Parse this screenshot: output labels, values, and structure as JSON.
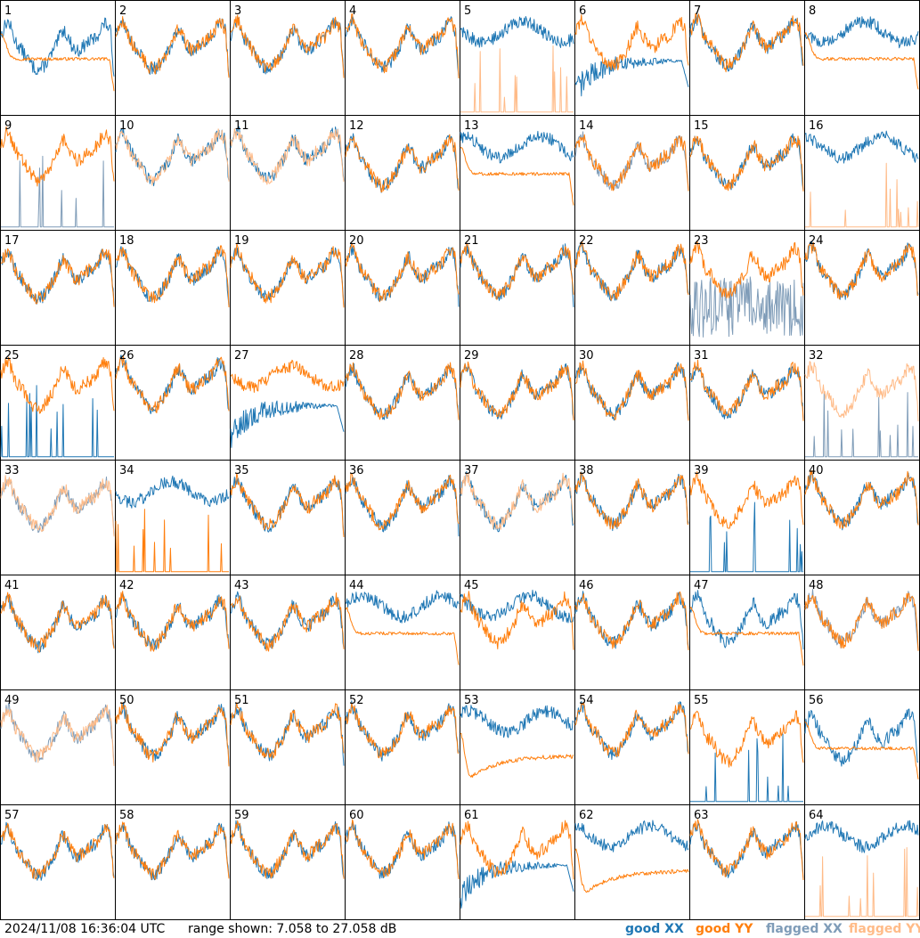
{
  "footer": {
    "timestamp": "2024/11/08 16:36:04 UTC",
    "range_text": "range shown: 7.058 to 27.058 dB"
  },
  "legend": {
    "good_xx": "good XX",
    "good_yy": "good YY",
    "flagged_xx": "flagged XX",
    "flagged_yy": "flagged YY"
  },
  "colors": {
    "good_xx": "#1f77b4",
    "good_yy": "#ff7f0e",
    "flagged_xx": "#7f9cb8",
    "flagged_yy": "#ffbb88"
  },
  "chart_data": {
    "type": "line",
    "layout": "8x8 small multiples",
    "ylim": [
      7.058,
      27.058
    ],
    "y_unit": "dB",
    "panel_labels": [
      "1",
      "2",
      "3",
      "4",
      "5",
      "6",
      "7",
      "8",
      "9",
      "10",
      "11",
      "12",
      "13",
      "14",
      "15",
      "16",
      "17",
      "18",
      "19",
      "20",
      "21",
      "22",
      "23",
      "24",
      "25",
      "26",
      "27",
      "28",
      "29",
      "30",
      "31",
      "32",
      "33",
      "34",
      "35",
      "36",
      "37",
      "38",
      "39",
      "40",
      "41",
      "42",
      "43",
      "44",
      "45",
      "46",
      "47",
      "48",
      "49",
      "50",
      "51",
      "52",
      "53",
      "54",
      "55",
      "56",
      "57",
      "58",
      "59",
      "60",
      "61",
      "62",
      "63",
      "64"
    ],
    "series_styles": {
      "XX": {
        "1": "good",
        "2": "good",
        "3": "good",
        "4": "good",
        "5": "good",
        "6": "good",
        "7": "good",
        "8": "good",
        "9": "flagged",
        "10": "good",
        "11": "good",
        "12": "good",
        "13": "good",
        "14": "flagged",
        "15": "good",
        "16": "good",
        "17": "good",
        "18": "good",
        "19": "good",
        "20": "good",
        "21": "good",
        "22": "good",
        "23": "flagged",
        "24": "good",
        "25": "good",
        "26": "good",
        "27": "good",
        "28": "good",
        "29": "good",
        "30": "good",
        "31": "good",
        "32": "flagged",
        "33": "flagged",
        "34": "good",
        "35": "good",
        "36": "good",
        "37": "good",
        "38": "good",
        "39": "good",
        "40": "good",
        "41": "good",
        "42": "good",
        "43": "good",
        "44": "good",
        "45": "good",
        "46": "good",
        "47": "good",
        "48": "flagged",
        "49": "flagged",
        "50": "good",
        "51": "good",
        "52": "good",
        "53": "good",
        "54": "good",
        "55": "good",
        "56": "good",
        "57": "good",
        "58": "good",
        "59": "good",
        "60": "good",
        "61": "good",
        "62": "good",
        "63": "good",
        "64": "good"
      },
      "YY": {
        "1": "good",
        "2": "good",
        "3": "good",
        "4": "good",
        "5": "flagged",
        "6": "good",
        "7": "good",
        "8": "good",
        "9": "good",
        "10": "flagged",
        "11": "flagged",
        "12": "good",
        "13": "good",
        "14": "good",
        "15": "good",
        "16": "flagged",
        "17": "good",
        "18": "good",
        "19": "good",
        "20": "good",
        "21": "good",
        "22": "good",
        "23": "good",
        "24": "good",
        "25": "good",
        "26": "good",
        "27": "good",
        "28": "good",
        "29": "good",
        "30": "good",
        "31": "good",
        "32": "flagged",
        "33": "flagged",
        "34": "good",
        "35": "good",
        "36": "good",
        "37": "flagged",
        "38": "good",
        "39": "good",
        "40": "good",
        "41": "good",
        "42": "good",
        "43": "good",
        "44": "good",
        "45": "good",
        "46": "good",
        "47": "good",
        "48": "good",
        "49": "flagged",
        "50": "good",
        "51": "good",
        "52": "good",
        "53": "good",
        "54": "good",
        "55": "good",
        "56": "good",
        "57": "good",
        "58": "good",
        "59": "good",
        "60": "good",
        "61": "good",
        "62": "good",
        "63": "good",
        "64": "flagged"
      }
    },
    "series_shapes": {
      "XX": {
        "5": "high-flat",
        "6": "anomalous-decay",
        "8": "high-flat",
        "9": "spikes",
        "13": "high-flat",
        "16": "high-flat",
        "23": "noisy-low",
        "25": "spikes",
        "27": "anomalous-decay",
        "32": "spikes",
        "34": "high-flat",
        "39": "spikes",
        "44": "high-flat",
        "45": "high-flat",
        "53": "high-flat",
        "55": "spikes",
        "61": "anomalous-decay",
        "62": "high-flat",
        "64": "high-flat"
      },
      "YY": {
        "1": "flat-mid",
        "5": "spikes",
        "8": "flat-mid",
        "13": "flat-mid",
        "16": "spikes",
        "27": "high-flat",
        "34": "spikes",
        "44": "flat-mid",
        "47": "flat-mid",
        "53": "low-decay",
        "56": "flat-mid",
        "62": "low-decay",
        "64": "spikes"
      }
    }
  }
}
